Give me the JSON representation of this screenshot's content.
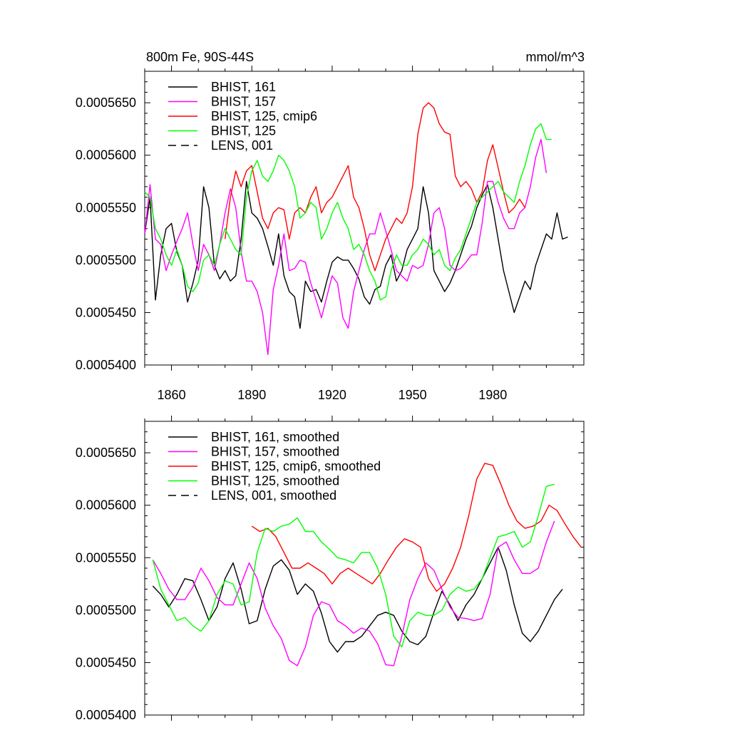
{
  "chart_data": [
    {
      "type": "line",
      "title": "800m Fe, 90S-44S",
      "units": "mmol/m^3",
      "xlabel": "",
      "ylabel": "",
      "xlim": [
        1850,
        2014
      ],
      "ylim": [
        0.00054,
        0.000568
      ],
      "y_ticks": [
        0.00054,
        0.000545,
        0.00055,
        0.000555,
        0.00056,
        0.000565
      ],
      "y_tick_labels": [
        "0.0005400",
        "0.0005450",
        "0.0005500",
        "0.0005550",
        "0.0005600",
        "0.0005650"
      ],
      "x_ticks": [
        1860,
        1890,
        1920,
        1950,
        1980
      ],
      "x_tick_labels": [
        "1860",
        "1890",
        "1920",
        "1950",
        "1980"
      ],
      "legend_position": "top-left",
      "series": [
        {
          "name": "BHIST, 161",
          "color": "#000000",
          "x_start": 1850,
          "step": 2,
          "values": [
            0.0005525,
            0.000556,
            0.0005462,
            0.0005505,
            0.000553,
            0.0005535,
            0.0005508,
            0.0005495,
            0.000546,
            0.0005478,
            0.00055,
            0.000557,
            0.000555,
            0.0005495,
            0.0005482,
            0.000549,
            0.000548,
            0.0005485,
            0.000552,
            0.0005575,
            0.0005545,
            0.000554,
            0.000553,
            0.0005513,
            0.0005495,
            0.0005525,
            0.0005485,
            0.000547,
            0.0005465,
            0.0005435,
            0.000548,
            0.000547,
            0.0005472,
            0.000546,
            0.000548,
            0.0005498,
            0.0005503,
            0.00055,
            0.00055,
            0.0005492,
            0.0005482,
            0.0005465,
            0.0005458,
            0.0005472,
            0.0005475,
            0.0005495,
            0.0005505,
            0.000548,
            0.000549,
            0.000551,
            0.000552,
            0.000553,
            0.000557,
            0.0005545,
            0.000549,
            0.000548,
            0.000547,
            0.0005478,
            0.000549,
            0.0005505,
            0.000552,
            0.0005532,
            0.000555,
            0.0005562,
            0.0005572,
            0.000555,
            0.000552,
            0.000549,
            0.000547,
            0.000545,
            0.0005465,
            0.000548,
            0.0005472,
            0.0005495,
            0.000551,
            0.0005525,
            0.000552,
            0.0005545,
            0.000552,
            0.0005522
          ]
        },
        {
          "name": "BHIST, 157",
          "color": "#ff00ff",
          "x_start": 1850,
          "step": 2,
          "values": [
            0.0005525,
            0.0005572,
            0.000552,
            0.0005515,
            0.000549,
            0.0005505,
            0.0005518,
            0.000553,
            0.0005545,
            0.0005515,
            0.000549,
            0.0005515,
            0.0005505,
            0.000549,
            0.0005515,
            0.0005545,
            0.0005568,
            0.000555,
            0.0005508,
            0.000548,
            0.000548,
            0.000547,
            0.000545,
            0.000541,
            0.0005472,
            0.0005495,
            0.0005525,
            0.000549,
            0.0005492,
            0.00055,
            0.0005498,
            0.0005478,
            0.0005462,
            0.0005445,
            0.0005465,
            0.0005485,
            0.0005478,
            0.0005445,
            0.0005435,
            0.000547,
            0.000549,
            0.000551,
            0.0005525,
            0.0005525,
            0.0005545,
            0.0005528,
            0.000551,
            0.000549,
            0.0005485,
            0.000548,
            0.0005495,
            0.0005492,
            0.0005495,
            0.0005515,
            0.0005545,
            0.000555,
            0.000553,
            0.0005495,
            0.000549,
            0.0005492,
            0.0005498,
            0.0005505,
            0.0005505,
            0.0005535,
            0.0005575,
            0.0005575,
            0.0005555,
            0.000554,
            0.000553,
            0.000553,
            0.0005545,
            0.000555,
            0.000557,
            0.0005598,
            0.0005615,
            0.0005583
          ]
        },
        {
          "name": "BHIST, 125, cmip6",
          "color": "#ff0000",
          "x_start": 1880,
          "step": 2,
          "values": [
            0.000552,
            0.000556,
            0.0005585,
            0.000557,
            0.0005585,
            0.000559,
            0.0005565,
            0.000554,
            0.000553,
            0.0005545,
            0.000555,
            0.0005548,
            0.000552,
            0.0005545,
            0.000555,
            0.0005545,
            0.000556,
            0.000557,
            0.0005545,
            0.0005555,
            0.000556,
            0.000557,
            0.000558,
            0.000559,
            0.000556,
            0.000555,
            0.000553,
            0.0005505,
            0.000549,
            0.0005505,
            0.000552,
            0.000553,
            0.000554,
            0.0005535,
            0.0005545,
            0.000557,
            0.000562,
            0.0005645,
            0.000565,
            0.0005645,
            0.000563,
            0.0005622,
            0.000562,
            0.000558,
            0.000557,
            0.0005575,
            0.0005568,
            0.0005555,
            0.0005565,
            0.0005595,
            0.000561,
            0.0005588,
            0.0005565,
            0.0005545,
            0.000555,
            0.0005558,
            0.000555
          ]
        },
        {
          "name": "BHIST, 125",
          "color": "#00ff00",
          "x_start": 1850,
          "step": 2,
          "values": [
            0.0005565,
            0.000556,
            0.000553,
            0.000552,
            0.0005505,
            0.0005495,
            0.000551,
            0.0005495,
            0.0005475,
            0.000547,
            0.0005478,
            0.00055,
            0.0005505,
            0.0005495,
            0.0005515,
            0.000553,
            0.000552,
            0.000551,
            0.0005505,
            0.000556,
            0.0005585,
            0.0005595,
            0.000558,
            0.0005575,
            0.0005585,
            0.00056,
            0.0005595,
            0.0005585,
            0.000557,
            0.000554,
            0.0005545,
            0.0005555,
            0.000555,
            0.000552,
            0.000553,
            0.0005545,
            0.0005555,
            0.000554,
            0.000553,
            0.000551,
            0.0005515,
            0.0005505,
            0.000549,
            0.000548,
            0.0005462,
            0.0005465,
            0.000549,
            0.0005505,
            0.0005495,
            0.0005495,
            0.0005505,
            0.000551,
            0.000552,
            0.0005515,
            0.0005505,
            0.000551,
            0.0005495,
            0.000549,
            0.0005502,
            0.000551,
            0.0005525,
            0.000554,
            0.0005555,
            0.000556,
            0.0005565,
            0.000557,
            0.0005575,
            0.0005565,
            0.000556,
            0.0005555,
            0.0005575,
            0.000559,
            0.000561,
            0.0005625,
            0.000563,
            0.0005615,
            0.0005615
          ]
        }
      ]
    },
    {
      "type": "line",
      "title": "",
      "xlabel": "",
      "ylabel": "",
      "xlim": [
        1850,
        2014
      ],
      "ylim": [
        0.00054,
        0.000568
      ],
      "y_ticks": [
        0.00054,
        0.000545,
        0.00055,
        0.000555,
        0.00056,
        0.000565
      ],
      "y_tick_labels": [
        "0.0005400",
        "0.0005450",
        "0.0005500",
        "0.0005550",
        "0.0005600",
        "0.0005650"
      ],
      "x_ticks": [
        1860,
        1890,
        1920,
        1950,
        1980
      ],
      "x_tick_labels": [],
      "legend_position": "top-left",
      "series": [
        {
          "name": "BHIST, 161, smoothed",
          "color": "#000000",
          "x_start": 1853,
          "step": 3,
          "values": [
            0.0005523,
            0.0005515,
            0.0005503,
            0.0005515,
            0.000553,
            0.0005528,
            0.000551,
            0.000549,
            0.0005503,
            0.000553,
            0.0005545,
            0.000552,
            0.0005487,
            0.000549,
            0.000552,
            0.0005542,
            0.0005548,
            0.0005538,
            0.0005515,
            0.0005525,
            0.0005518,
            0.0005497,
            0.000547,
            0.000546,
            0.000547,
            0.000547,
            0.0005475,
            0.0005485,
            0.0005495,
            0.0005498,
            0.0005495,
            0.000548,
            0.000547,
            0.0005467,
            0.0005475,
            0.0005498,
            0.0005518,
            0.0005505,
            0.000549,
            0.0005505,
            0.0005515,
            0.000553,
            0.0005545,
            0.000556,
            0.0005538,
            0.0005505,
            0.0005478,
            0.000547,
            0.000548,
            0.0005495,
            0.000551,
            0.000552
          ]
        },
        {
          "name": "BHIST, 157, smoothed",
          "color": "#ff00ff",
          "x_start": 1853,
          "step": 3,
          "values": [
            0.0005548,
            0.0005535,
            0.000552,
            0.000551,
            0.000551,
            0.0005522,
            0.000554,
            0.0005528,
            0.0005512,
            0.0005505,
            0.0005505,
            0.0005525,
            0.0005545,
            0.000553,
            0.0005502,
            0.0005485,
            0.0005473,
            0.0005452,
            0.0005447,
            0.0005465,
            0.0005495,
            0.0005508,
            0.0005505,
            0.000549,
            0.0005485,
            0.0005478,
            0.0005483,
            0.000548,
            0.0005468,
            0.0005448,
            0.0005447,
            0.0005475,
            0.000551,
            0.000553,
            0.0005545,
            0.0005538,
            0.000552,
            0.0005503,
            0.0005493,
            0.0005492,
            0.000549,
            0.0005492,
            0.0005515,
            0.000556,
            0.0005565,
            0.0005548,
            0.0005535,
            0.0005535,
            0.000554,
            0.0005565,
            0.0005585
          ]
        },
        {
          "name": "BHIST, 125, cmip6, smoothed",
          "color": "#ff0000",
          "x_start": 1890,
          "step": 3,
          "values": [
            0.000558,
            0.0005575,
            0.0005578,
            0.000557,
            0.0005555,
            0.000554,
            0.000554,
            0.0005545,
            0.000554,
            0.0005535,
            0.0005525,
            0.0005535,
            0.000554,
            0.0005535,
            0.000553,
            0.0005525,
            0.0005535,
            0.0005548,
            0.000556,
            0.0005568,
            0.0005565,
            0.000556,
            0.000553,
            0.0005518,
            0.0005525,
            0.000554,
            0.000556,
            0.000559,
            0.0005625,
            0.000564,
            0.0005638,
            0.000562,
            0.00056,
            0.0005585,
            0.0005578,
            0.000558,
            0.0005585,
            0.00056,
            0.0005595,
            0.0005582,
            0.000557,
            0.000556
          ]
        },
        {
          "name": "BHIST, 125, smoothed",
          "color": "#00ff00",
          "x_start": 1853,
          "step": 3,
          "values": [
            0.0005548,
            0.000552,
            0.0005505,
            0.000549,
            0.0005493,
            0.0005485,
            0.000548,
            0.000549,
            0.0005515,
            0.0005528,
            0.0005525,
            0.0005505,
            0.0005508,
            0.0005555,
            0.0005578,
            0.0005575,
            0.000558,
            0.0005582,
            0.0005588,
            0.0005575,
            0.0005575,
            0.0005565,
            0.0005558,
            0.000555,
            0.0005548,
            0.0005545,
            0.0005555,
            0.0005555,
            0.000554,
            0.0005515,
            0.0005475,
            0.0005465,
            0.000549,
            0.0005498,
            0.0005495,
            0.0005495,
            0.00055,
            0.0005515,
            0.0005522,
            0.0005518,
            0.000552,
            0.000553,
            0.000555,
            0.000557,
            0.0005572,
            0.0005575,
            0.000556,
            0.0005565,
            0.000559,
            0.0005618,
            0.000562
          ]
        }
      ]
    }
  ],
  "legends": [
    {
      "entries": [
        {
          "label": "BHIST, 161",
          "color": "#000000",
          "dash": false
        },
        {
          "label": "BHIST, 157",
          "color": "#ff00ff",
          "dash": false
        },
        {
          "label": "BHIST, 125, cmip6",
          "color": "#ff0000",
          "dash": false
        },
        {
          "label": "BHIST, 125",
          "color": "#00ff00",
          "dash": false
        },
        {
          "label": "LENS, 001",
          "color": "#000000",
          "dash": true
        }
      ]
    },
    {
      "entries": [
        {
          "label": "BHIST, 161, smoothed",
          "color": "#000000",
          "dash": false
        },
        {
          "label": "BHIST, 157, smoothed",
          "color": "#ff00ff",
          "dash": false
        },
        {
          "label": "BHIST, 125, cmip6, smoothed",
          "color": "#ff0000",
          "dash": false
        },
        {
          "label": "BHIST, 125, smoothed",
          "color": "#00ff00",
          "dash": false
        },
        {
          "label": "LENS, 001, smoothed",
          "color": "#000000",
          "dash": true
        }
      ]
    }
  ]
}
